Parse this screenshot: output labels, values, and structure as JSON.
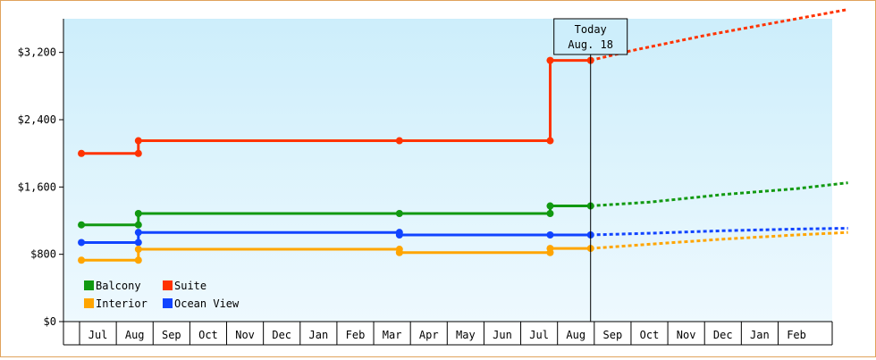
{
  "chart_data": {
    "type": "line",
    "title": "",
    "xlabel": "",
    "ylabel": "",
    "ylim": [
      0,
      3200
    ],
    "y_ticks": [
      0,
      800,
      1600,
      2400,
      3200
    ],
    "y_tick_labels": [
      "$0",
      "$800",
      "$1,600",
      "$2,400",
      "$3,200"
    ],
    "x_tick_labels": [
      "Jul",
      "Aug",
      "Sep",
      "Oct",
      "Nov",
      "Dec",
      "Jan",
      "Feb",
      "Mar",
      "Apr",
      "May",
      "Jun",
      "Jul",
      "Aug",
      "Sep",
      "Oct",
      "Nov",
      "Dec",
      "Jan",
      "Feb"
    ],
    "today_marker": {
      "line1": "Today",
      "line2": "Aug. 18",
      "x": 13.4
    },
    "legend_placement": "bottom-left",
    "grid": false,
    "series": [
      {
        "name": "Suite",
        "color": "#ff3300",
        "points": [
          [
            -0.45,
            1999
          ],
          [
            1.1,
            1999
          ],
          [
            1.1,
            2150
          ],
          [
            8.2,
            2150
          ],
          [
            12.3,
            2150
          ],
          [
            12.3,
            3105
          ],
          [
            13.4,
            3105
          ]
        ],
        "markers": [
          [
            -0.45,
            1999
          ],
          [
            1.1,
            1999
          ],
          [
            1.1,
            2150
          ],
          [
            8.2,
            2150
          ],
          [
            12.3,
            2150
          ],
          [
            12.3,
            3105
          ],
          [
            13.4,
            3105
          ]
        ],
        "forecast": [
          [
            13.4,
            3105
          ],
          [
            14.5,
            3220
          ],
          [
            16.5,
            3400
          ],
          [
            18.5,
            3560
          ],
          [
            20.4,
            3710
          ]
        ]
      },
      {
        "name": "Balcony",
        "color": "#119911",
        "points": [
          [
            -0.45,
            1150
          ],
          [
            1.1,
            1150
          ],
          [
            1.1,
            1285
          ],
          [
            8.2,
            1285
          ],
          [
            12.3,
            1285
          ],
          [
            12.3,
            1375
          ],
          [
            13.4,
            1375
          ]
        ],
        "markers": [
          [
            -0.45,
            1150
          ],
          [
            1.1,
            1150
          ],
          [
            1.1,
            1285
          ],
          [
            8.2,
            1285
          ],
          [
            12.3,
            1285
          ],
          [
            12.3,
            1375
          ],
          [
            13.4,
            1375
          ]
        ],
        "forecast": [
          [
            13.4,
            1375
          ],
          [
            15,
            1420
          ],
          [
            17,
            1510
          ],
          [
            19,
            1580
          ],
          [
            20.4,
            1650
          ]
        ]
      },
      {
        "name": "Ocean View",
        "color": "#1144ff",
        "points": [
          [
            -0.45,
            940
          ],
          [
            1.1,
            940
          ],
          [
            1.1,
            1060
          ],
          [
            8.2,
            1060
          ],
          [
            8.2,
            1030
          ],
          [
            12.3,
            1030
          ],
          [
            13.4,
            1030
          ]
        ],
        "markers": [
          [
            -0.45,
            940
          ],
          [
            1.1,
            940
          ],
          [
            1.1,
            1060
          ],
          [
            8.2,
            1060
          ],
          [
            8.2,
            1030
          ],
          [
            12.3,
            1030
          ],
          [
            13.4,
            1030
          ]
        ],
        "forecast": [
          [
            13.4,
            1030
          ],
          [
            15,
            1050
          ],
          [
            17,
            1080
          ],
          [
            19,
            1100
          ],
          [
            20.4,
            1110
          ]
        ]
      },
      {
        "name": "Interior",
        "color": "#ffa500",
        "points": [
          [
            -0.45,
            730
          ],
          [
            1.1,
            730
          ],
          [
            1.1,
            860
          ],
          [
            8.2,
            860
          ],
          [
            8.2,
            820
          ],
          [
            12.3,
            820
          ],
          [
            12.3,
            870
          ],
          [
            13.4,
            870
          ]
        ],
        "markers": [
          [
            -0.45,
            730
          ],
          [
            1.1,
            730
          ],
          [
            1.1,
            860
          ],
          [
            8.2,
            860
          ],
          [
            8.2,
            820
          ],
          [
            12.3,
            820
          ],
          [
            12.3,
            870
          ],
          [
            13.4,
            870
          ]
        ],
        "forecast": [
          [
            13.4,
            870
          ],
          [
            15,
            920
          ],
          [
            17,
            980
          ],
          [
            19,
            1030
          ],
          [
            20.4,
            1060
          ]
        ]
      }
    ],
    "legend": [
      {
        "label": "Balcony",
        "color": "#119911"
      },
      {
        "label": "Suite",
        "color": "#ff3300"
      },
      {
        "label": "Interior",
        "color": "#ffa500"
      },
      {
        "label": "Ocean View",
        "color": "#1144ff"
      }
    ]
  }
}
